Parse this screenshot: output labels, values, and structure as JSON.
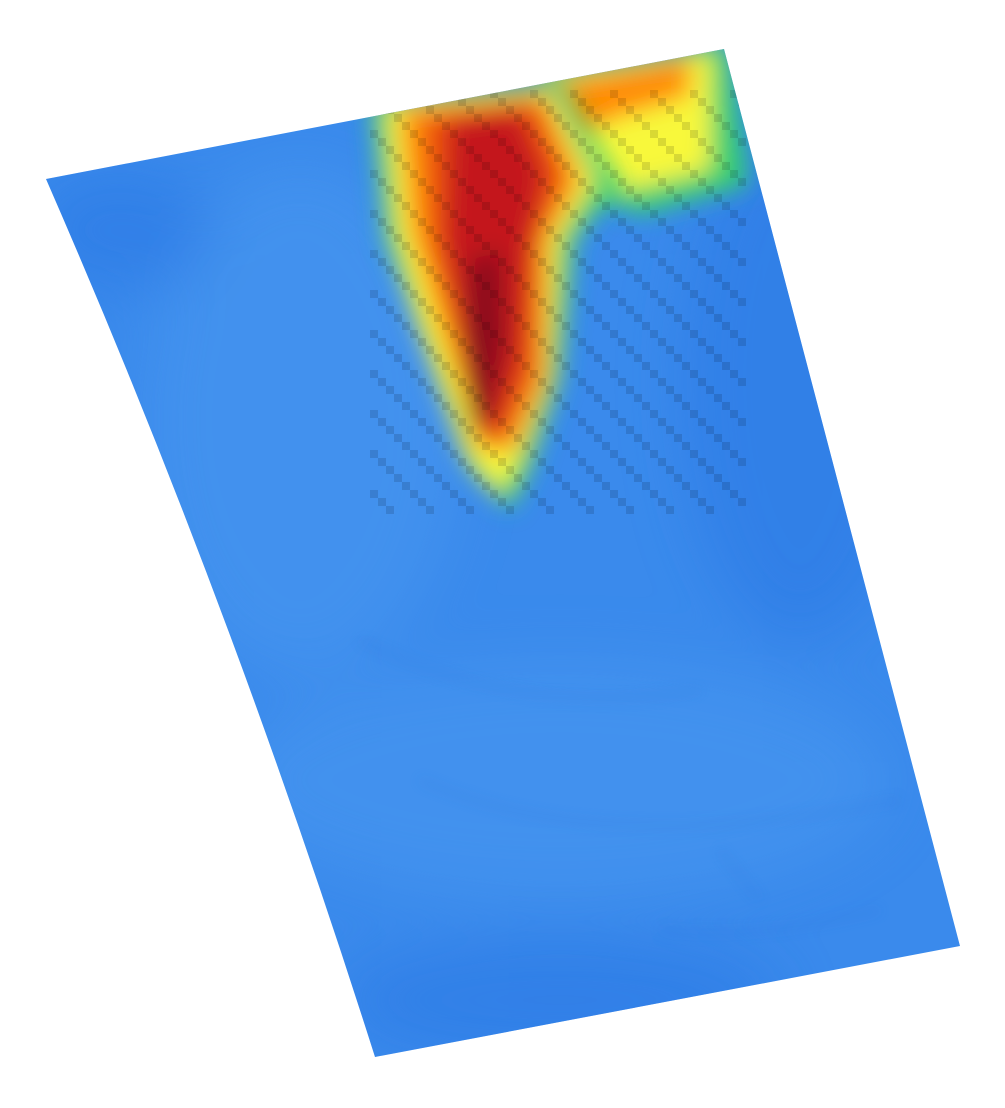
{
  "map": {
    "kind": "raster-heatmap",
    "projection": "warped-quadrilateral",
    "colors": {
      "background": "#ffffff",
      "base_blue": "#3a8aec",
      "dark_blue": "#2b78e4",
      "light_blue": "#4a98f0",
      "palette": [
        "#2b78e4",
        "#4a98f0",
        "#35d070",
        "#a8f040",
        "#f8f83a",
        "#ffc21a",
        "#ff8a00",
        "#ea4a10",
        "#c4181c",
        "#8a0a1e"
      ]
    },
    "hotspots": [
      {
        "name": "main-plume",
        "peak_level": 1.0
      },
      {
        "name": "north-east-lobe",
        "peak_level": 0.62
      }
    ]
  }
}
